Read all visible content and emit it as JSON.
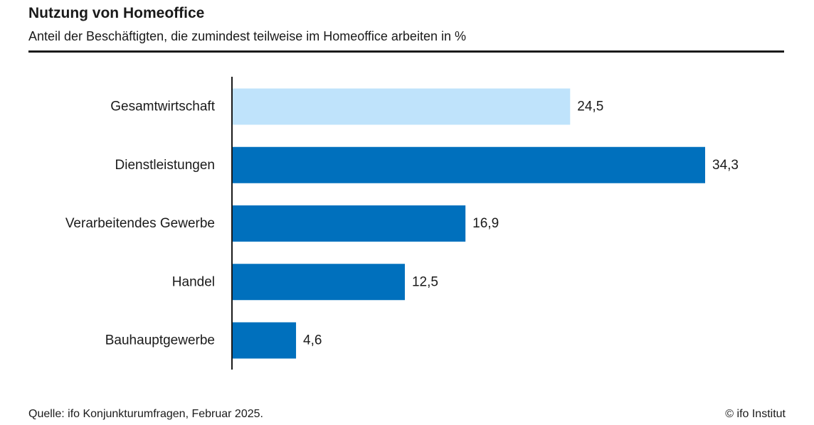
{
  "title": "Nutzung von Homeoffice",
  "subtitle": "Anteil der Beschäftigten, die zumindest teilweise im Homeoffice arbeiten in %",
  "source": "Quelle: ifo Konjunkturumfragen, Februar 2025.",
  "copyright": "© ifo Institut",
  "colors": {
    "highlight": "#bfe3fb",
    "primary": "#0070bd",
    "axis": "#1a1a1a",
    "text": "#1a1a1a"
  },
  "chart_data": {
    "type": "bar",
    "orientation": "horizontal",
    "categories": [
      "Gesamtwirtschaft",
      "Dienstleistungen",
      "Verarbeitendes Gewerbe",
      "Handel",
      "Bauhauptgewerbe"
    ],
    "values": [
      24.5,
      34.3,
      16.9,
      12.5,
      4.6
    ],
    "value_labels": [
      "24,5",
      "34,3",
      "16,9",
      "12,5",
      "4,6"
    ],
    "highlighted": [
      "Gesamtwirtschaft"
    ],
    "title": "Nutzung von Homeoffice",
    "subtitle": "Anteil der Beschäftigten, die zumindest teilweise im Homeoffice arbeiten in %",
    "xlabel": "",
    "ylabel": "",
    "xlim": [
      0,
      34.3
    ],
    "grid": false,
    "legend": "none"
  }
}
